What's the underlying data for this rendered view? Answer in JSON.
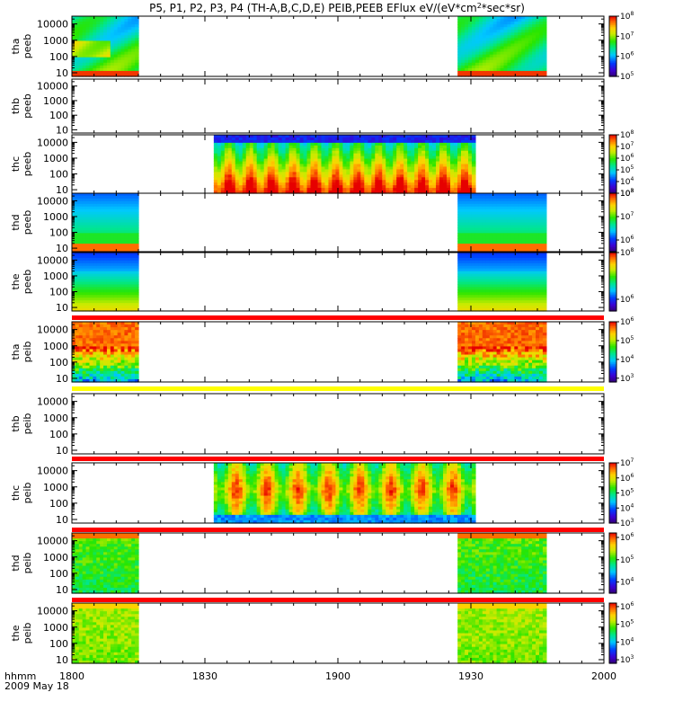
{
  "chart_data": {
    "type": "heatmap",
    "title": "P5, P1, P2, P3, P4 (TH-A,B,C,D,E) PEIB,PEEB EFlux eV/(eV*cm",
    "title_sup": "2",
    "title_tail": "*sec*sr)",
    "x_axis": {
      "label": "hhmm",
      "date_label": "2009 May 18",
      "range_minutes": [
        0,
        120
      ],
      "ticks": [
        {
          "label": "1800",
          "minute": 0
        },
        {
          "label": "1830",
          "minute": 30
        },
        {
          "label": "1900",
          "minute": 60
        },
        {
          "label": "1930",
          "minute": 90
        },
        {
          "label": "2000",
          "minute": 120
        }
      ]
    },
    "y_ticks": [
      {
        "label": "10000",
        "value": 10000
      },
      {
        "label": "1000",
        "value": 1000
      },
      {
        "label": "100",
        "value": 100
      },
      {
        "label": "10",
        "value": 10
      }
    ],
    "y_range": [
      6,
      30000
    ],
    "y_scale": "log",
    "colormap": "rainbow",
    "panels": [
      {
        "name": "tha-peeb",
        "probe": "tha",
        "instrument": "peeb",
        "segments": [
          [
            0,
            15
          ],
          [
            87,
            107
          ]
        ],
        "style": "peeb_a",
        "status_bar": null,
        "cbar": {
          "range": [
            5,
            8
          ],
          "ticks": [
            {
              "exp": "8"
            },
            {
              "exp": "7"
            },
            {
              "exp": "6"
            },
            {
              "exp": "5"
            }
          ]
        }
      },
      {
        "name": "thb-peeb",
        "probe": "thb",
        "instrument": "peeb",
        "segments": [],
        "style": "none",
        "status_bar": null,
        "cbar": null
      },
      {
        "name": "thc-peeb",
        "probe": "thc",
        "instrument": "peeb",
        "segments": [
          [
            32,
            91
          ]
        ],
        "style": "peeb_c",
        "status_bar": null,
        "cbar": {
          "range": [
            3,
            8
          ],
          "ticks": [
            {
              "exp": "8"
            },
            {
              "exp": "7"
            },
            {
              "exp": "6"
            },
            {
              "exp": "5"
            },
            {
              "exp": "4"
            },
            {
              "exp": "3"
            }
          ]
        }
      },
      {
        "name": "thd-peeb",
        "probe": "thd",
        "instrument": "peeb",
        "segments": [
          [
            0,
            15
          ],
          [
            87,
            107
          ]
        ],
        "style": "peeb_d",
        "status_bar": null,
        "cbar": {
          "range": [
            5.5,
            8
          ],
          "ticks": [
            {
              "exp": "8"
            },
            {
              "exp": "7"
            },
            {
              "exp": "6"
            }
          ]
        }
      },
      {
        "name": "the-peeb",
        "probe": "the",
        "instrument": "peeb",
        "segments": [
          [
            0,
            15
          ],
          [
            87,
            107
          ]
        ],
        "style": "peeb_e",
        "status_bar": null,
        "cbar": {
          "range": [
            5.5,
            8
          ],
          "ticks": [
            {
              "exp": "8"
            },
            {
              "exp": "6"
            }
          ]
        }
      },
      {
        "name": "tha-peib",
        "probe": "tha",
        "instrument": "peib",
        "segments": [
          [
            0,
            15
          ],
          [
            87,
            107
          ]
        ],
        "style": "peib_a",
        "status_bar": "#ff0000",
        "cbar": {
          "range": [
            2.8,
            6
          ],
          "ticks": [
            {
              "exp": "6"
            },
            {
              "exp": "5"
            },
            {
              "exp": "4"
            },
            {
              "exp": "3"
            }
          ]
        }
      },
      {
        "name": "thb-peib",
        "probe": "thb",
        "instrument": "peib",
        "segments": [],
        "style": "none",
        "status_bar": "#ffff00",
        "cbar": null
      },
      {
        "name": "thc-peib",
        "probe": "thc",
        "instrument": "peib",
        "segments": [
          [
            32,
            91
          ]
        ],
        "style": "peib_c",
        "status_bar": "#ff0000",
        "cbar": {
          "range": [
            3,
            7
          ],
          "ticks": [
            {
              "exp": "7"
            },
            {
              "exp": "6"
            },
            {
              "exp": "5"
            },
            {
              "exp": "4"
            },
            {
              "exp": "3"
            }
          ]
        }
      },
      {
        "name": "thd-peib",
        "probe": "thd",
        "instrument": "peib",
        "segments": [
          [
            0,
            15
          ],
          [
            87,
            107
          ]
        ],
        "style": "peib_d",
        "status_bar": "#ff0000",
        "cbar": {
          "range": [
            3.5,
            6.2
          ],
          "ticks": [
            {
              "exp": "6"
            },
            {
              "exp": "5"
            },
            {
              "exp": "4"
            }
          ]
        }
      },
      {
        "name": "the-peib",
        "probe": "the",
        "instrument": "peib",
        "segments": [
          [
            0,
            15
          ],
          [
            87,
            107
          ]
        ],
        "style": "peib_e",
        "status_bar": "#ff0000",
        "cbar": {
          "range": [
            2.8,
            6.2
          ],
          "ticks": [
            {
              "exp": "6"
            },
            {
              "exp": "5"
            },
            {
              "exp": "4"
            },
            {
              "exp": "3"
            }
          ]
        }
      }
    ]
  }
}
